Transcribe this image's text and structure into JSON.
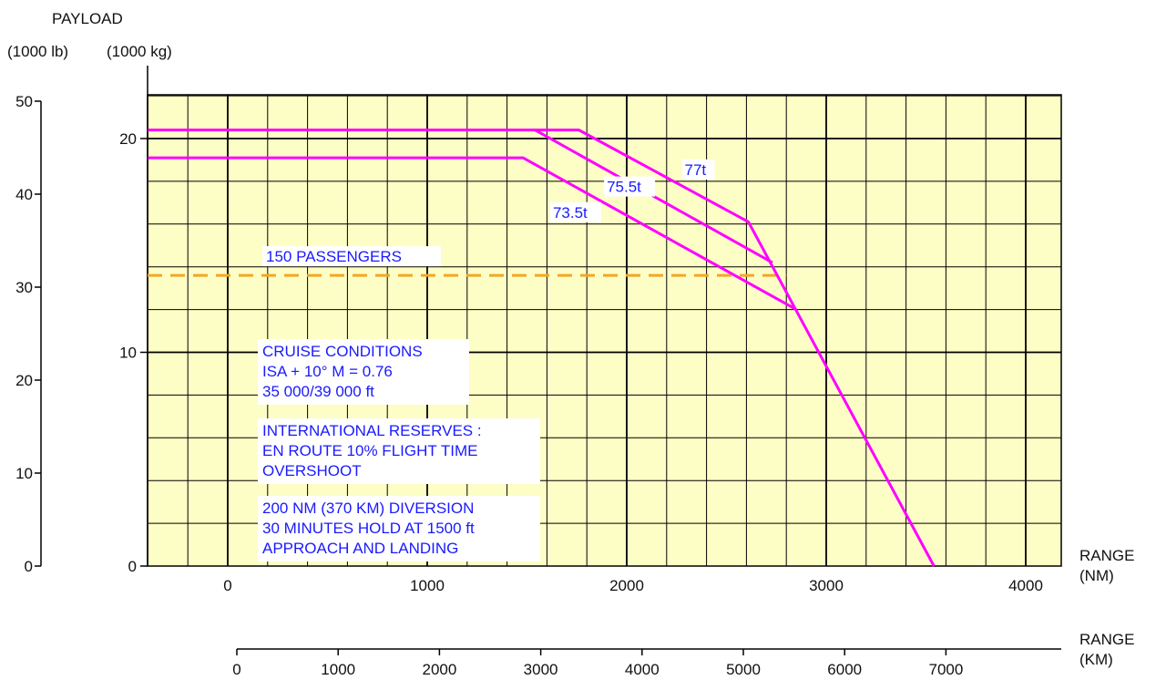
{
  "header": {
    "payload_label": "PAYLOAD",
    "lb_unit": "(1000 lb)",
    "kg_unit": "(1000 kg)",
    "range_nm_label": "RANGE",
    "range_nm_unit": "(NM)",
    "range_km_label": "RANGE",
    "range_km_unit": "(KM)"
  },
  "chart_data": {
    "type": "line",
    "title": "",
    "xlabel": "RANGE (NM)",
    "ylabel": "PAYLOAD (1000 kg)",
    "xlim": [
      -400,
      4200
    ],
    "ylim": [
      0,
      22
    ],
    "x_ticks": [
      0,
      1000,
      2000,
      3000,
      4000
    ],
    "y_ticks_kg": [
      0,
      10,
      20
    ],
    "y_ticks_lb": [
      0,
      10,
      20,
      30,
      40,
      50
    ],
    "km_ticks": [
      0,
      1000,
      2000,
      3000,
      4000,
      5000,
      6000,
      7000
    ],
    "grid": true,
    "plot_background": "#fdfdc6",
    "series": [
      {
        "name": "77t",
        "color": "#ff00ff",
        "points": [
          [
            -400,
            20.4
          ],
          [
            1760,
            20.4
          ],
          [
            2610,
            16.1
          ],
          [
            3540,
            0
          ]
        ]
      },
      {
        "name": "75.5t",
        "color": "#ff00ff",
        "points": [
          [
            1540,
            20.4
          ],
          [
            2730,
            14.2
          ]
        ]
      },
      {
        "name": "73.5t",
        "color": "#ff00ff",
        "points": [
          [
            -400,
            19.1
          ],
          [
            1480,
            19.1
          ],
          [
            2850,
            12.0
          ]
        ]
      }
    ],
    "reference_line": {
      "label": "150 PASSENGERS",
      "value": 13.6,
      "x_end": 2800,
      "color": "#f5a623"
    },
    "annotations": {
      "series_labels": [
        "77t",
        "75.5t",
        "73.5t"
      ],
      "conditions": [
        "CRUISE CONDITIONS",
        "ISA + 10° M = 0.76",
        "35 000/39 000 ft",
        "INTERNATIONAL RESERVES :",
        "EN ROUTE 10% FLIGHT TIME",
        "OVERSHOOT",
        "200 NM (370 KM) DIVERSION",
        "30 MINUTES HOLD AT 1500 ft",
        "APPROACH AND LANDING"
      ]
    }
  }
}
